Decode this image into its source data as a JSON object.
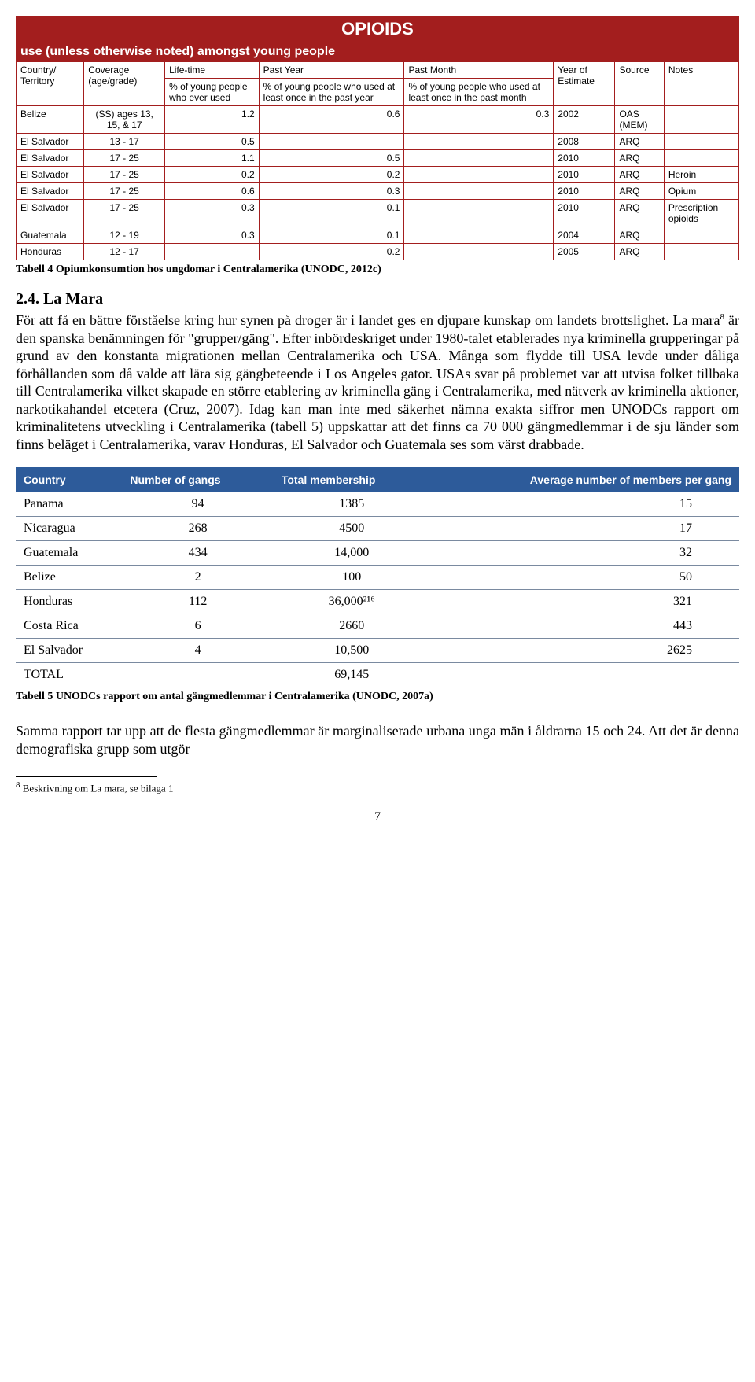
{
  "table1": {
    "header_title": "OPIOIDS",
    "subheader": "use (unless otherwise noted) amongst young people",
    "group_headers": [
      "Life-time",
      "Past Year",
      "Past Month"
    ],
    "columns": [
      "Country/ Territory",
      "Coverage (age/grade)",
      "% of young people who ever used",
      "% of young people who used at least once in the past year",
      "% of young people who used at least once in the past month",
      "Year of Estimate",
      "Source",
      "Notes"
    ],
    "rows": [
      [
        "Belize",
        "(SS) ages 13, 15, & 17",
        "1.2",
        "0.6",
        "0.3",
        "2002",
        "OAS (MEM)",
        ""
      ],
      [
        "El Salvador",
        "13 - 17",
        "0.5",
        "",
        "",
        "2008",
        "ARQ",
        ""
      ],
      [
        "El Salvador",
        "17 - 25",
        "1.1",
        "0.5",
        "",
        "2010",
        "ARQ",
        ""
      ],
      [
        "El Salvador",
        "17 - 25",
        "0.2",
        "0.2",
        "",
        "2010",
        "ARQ",
        "Heroin"
      ],
      [
        "El Salvador",
        "17 - 25",
        "0.6",
        "0.3",
        "",
        "2010",
        "ARQ",
        "Opium"
      ],
      [
        "El Salvador",
        "17 - 25",
        "0.3",
        "0.1",
        "",
        "2010",
        "ARQ",
        "Prescription opioids"
      ],
      [
        "Guatemala",
        "12 - 19",
        "0.3",
        "0.1",
        "",
        "2004",
        "ARQ",
        ""
      ],
      [
        "Honduras",
        "12 - 17",
        "",
        "0.2",
        "",
        "2005",
        "ARQ",
        ""
      ]
    ],
    "caption": "Tabell 4 Opiumkonsumtion hos ungdomar i Centralamerika (UNODC, 2012c)"
  },
  "section": {
    "number": "2.4.",
    "title": "La Mara",
    "body": "För att få en bättre förståelse kring hur synen på droger är i landet ges en djupare kunskap om landets brottslighet. La mara",
    "sup": "8",
    "body2": " är den spanska benämningen för \"grupper/gäng\". Efter inbördeskriget under 1980-talet etablerades nya kriminella grupperingar på grund av den konstanta migrationen mellan Centralamerika och USA. Många som flydde till USA levde under dåliga förhållanden som då valde att lära sig gängbeteende i Los Angeles gator. USAs svar på problemet var att utvisa folket tillbaka till Centralamerika vilket skapade en större etablering av kriminella gäng i Centralamerika, med nätverk av kriminella aktioner, narkotikahandel etcetera (Cruz, 2007). Idag kan man inte med säkerhet nämna exakta siffror men UNODCs rapport om kriminalitetens utveckling i Centralamerika (tabell 5) uppskattar att det finns ca 70 000 gängmedlemmar i de sju länder som finns beläget i Centralamerika, varav Honduras, El Salvador och Guatemala ses som värst drabbade."
  },
  "table2": {
    "columns": [
      "Country",
      "Number of gangs",
      "Total membership",
      "Average number of members per gang"
    ],
    "rows": [
      [
        "Panama",
        "94",
        "1385",
        "15"
      ],
      [
        "Nicaragua",
        "268",
        "4500",
        "17"
      ],
      [
        "Guatemala",
        "434",
        "14,000",
        "32"
      ],
      [
        "Belize",
        "2",
        "100",
        "50"
      ],
      [
        "Honduras",
        "112",
        "36,000²¹⁶",
        "321"
      ],
      [
        "Costa Rica",
        "6",
        "2660",
        "443"
      ],
      [
        "El Salvador",
        "4",
        "10,500",
        "2625"
      ],
      [
        "TOTAL",
        "",
        "69,145",
        ""
      ]
    ],
    "caption": "Tabell 5 UNODCs rapport om antal gängmedlemmar i Centralamerika (UNODC, 2007a)"
  },
  "closing": "Samma rapport tar upp att de flesta gängmedlemmar är marginaliserade urbana unga män i åldrarna 15 och 24. Att det är denna demografiska grupp som utgör",
  "footnote": {
    "num": "8",
    "text": " Beskrivning om La mara, se bilaga 1"
  },
  "pagenum": "7",
  "colors": {
    "table1_border": "#a31e1e",
    "table2_header_bg": "#2d5b9a",
    "table2_row_border": "#7a8aa0"
  }
}
